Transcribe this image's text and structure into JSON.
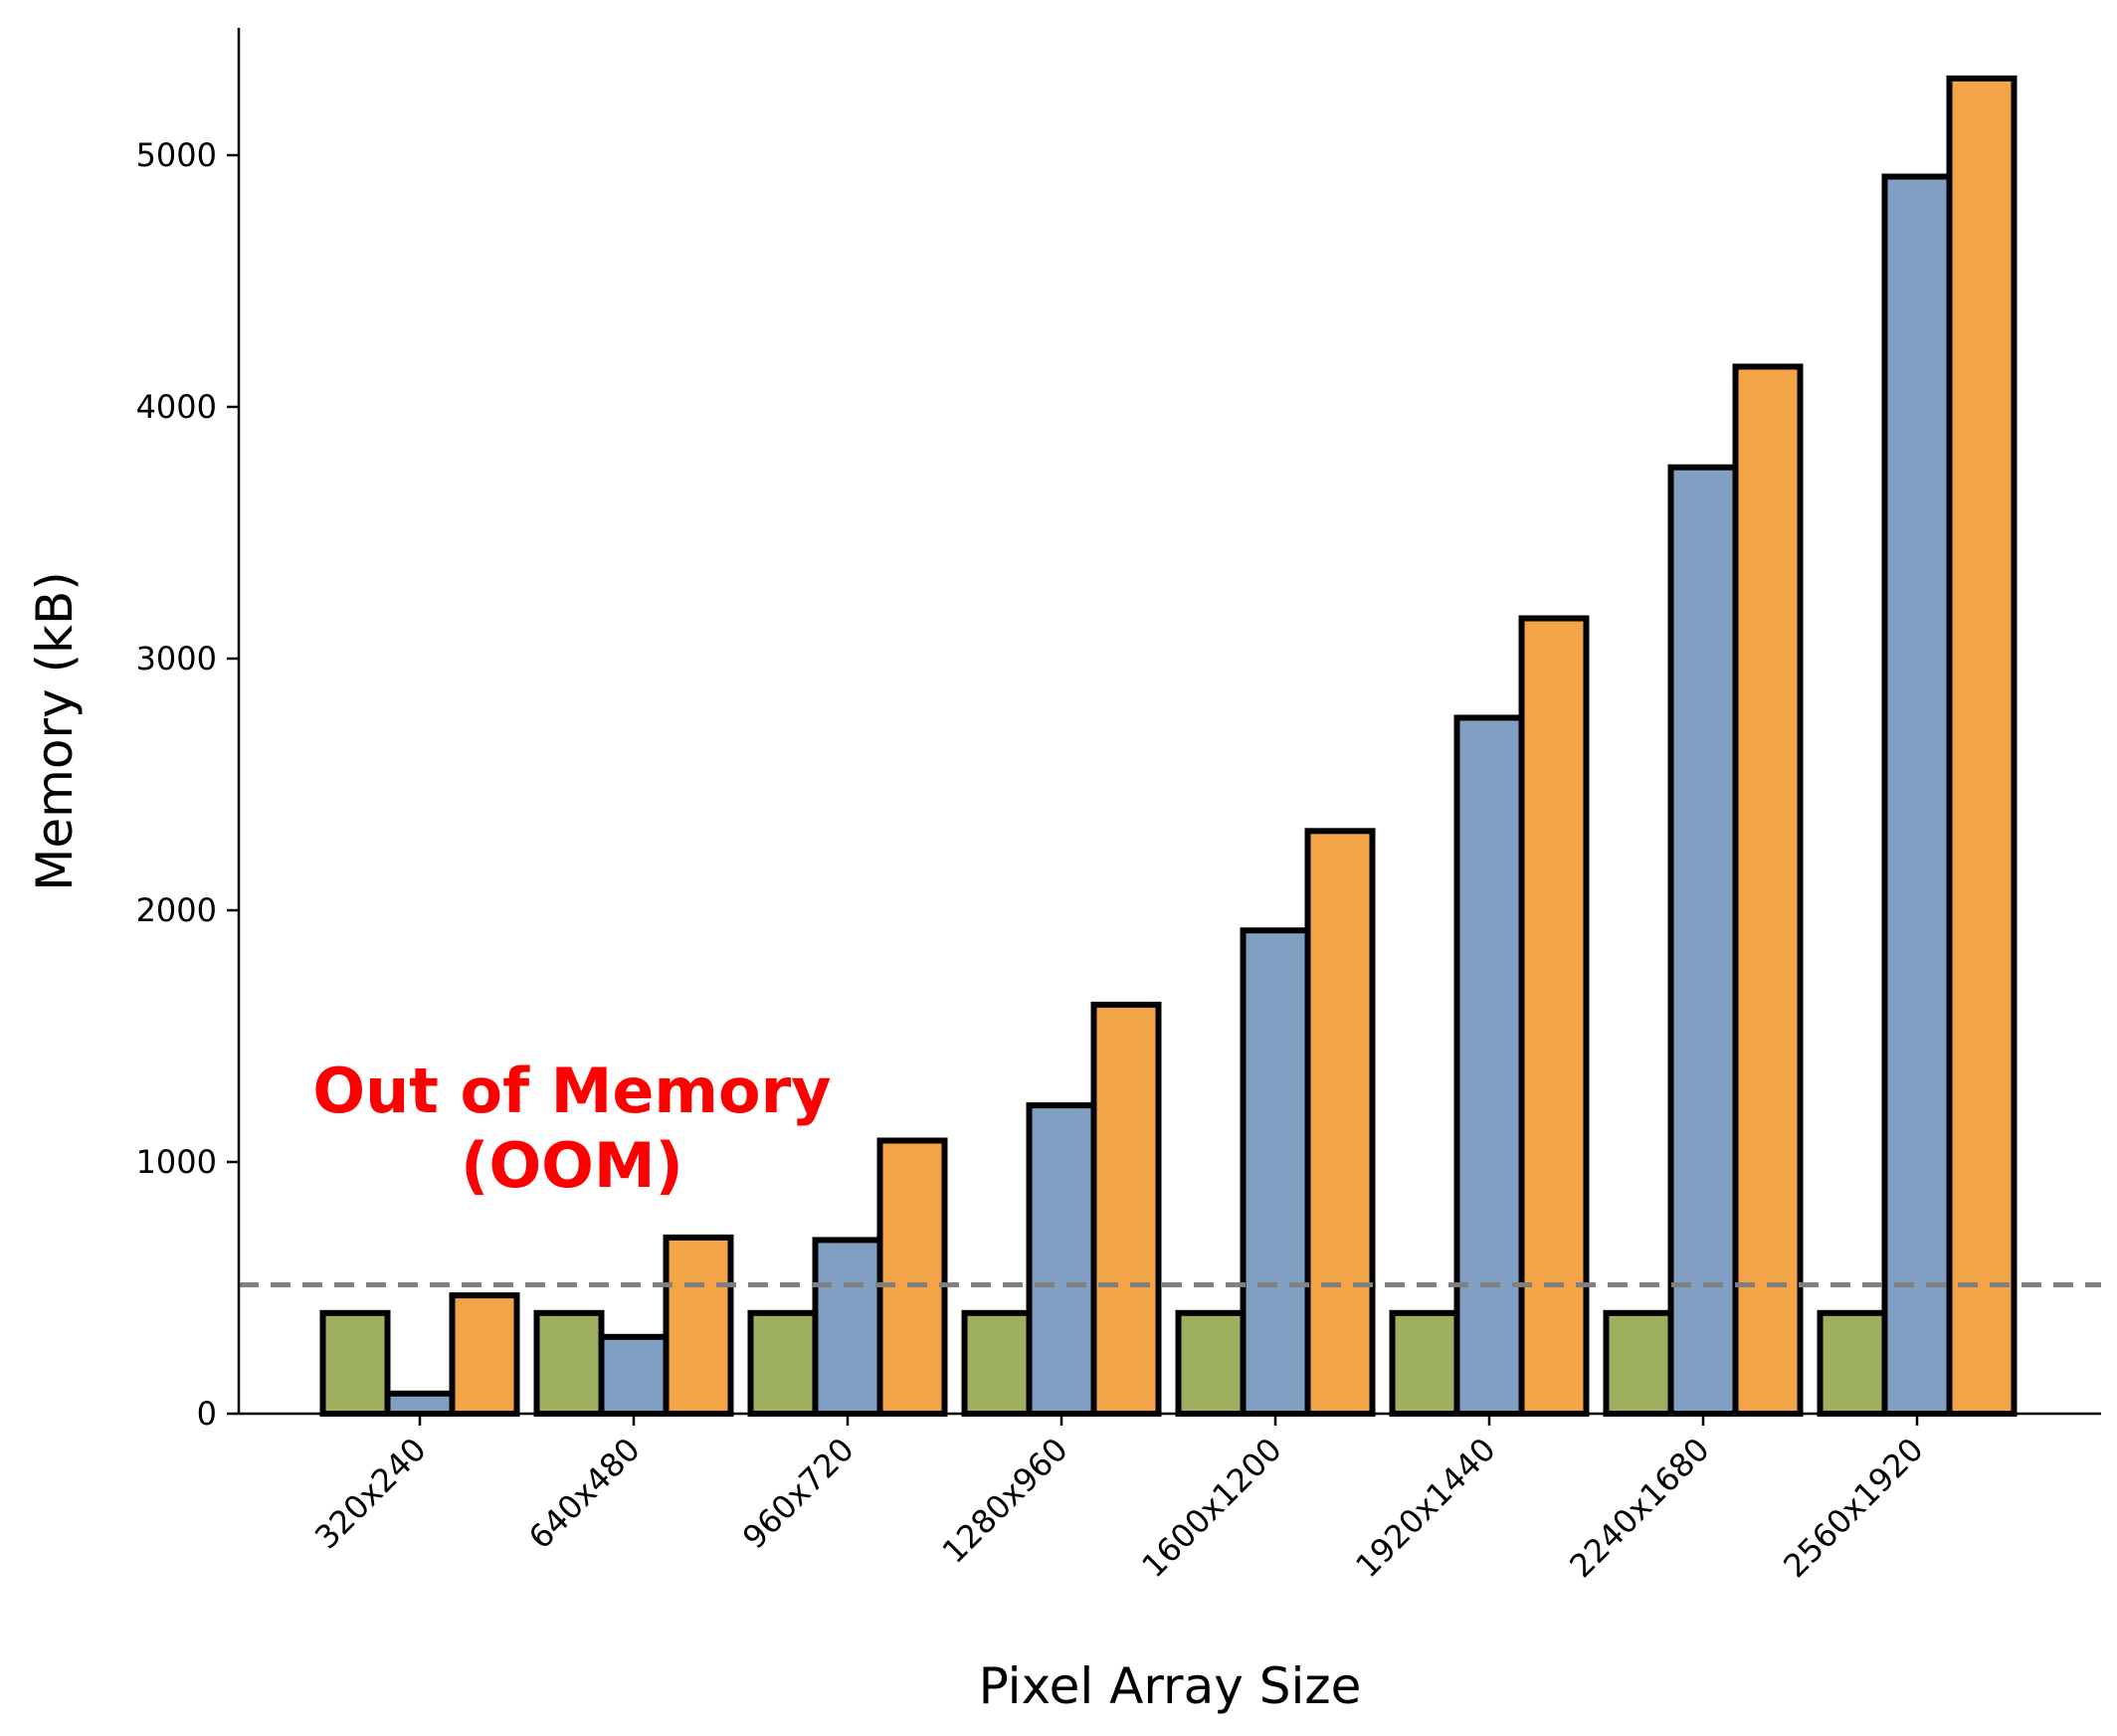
{
  "chart_data": {
    "type": "bar",
    "title": "",
    "xlabel": "Pixel Array Size",
    "ylabel": "Memory (kB)",
    "categories": [
      "320x240",
      "640x480",
      "960x720",
      "1280x960",
      "1600x1200",
      "1920x1440",
      "2240x1680",
      "2560x1920"
    ],
    "series": [
      {
        "color": "#9eb060",
        "values": [
          400,
          400,
          400,
          400,
          400,
          400,
          400,
          400
        ]
      },
      {
        "color": "#809fc2",
        "values": [
          80,
          305,
          690,
          1225,
          1920,
          2765,
          3760,
          4915
        ]
      },
      {
        "color": "#f2a446",
        "values": [
          470,
          700,
          1085,
          1625,
          2315,
          3160,
          4160,
          5305
        ]
      }
    ],
    "ylim": [
      0,
      5500
    ],
    "yticks": [
      0,
      1000,
      2000,
      3000,
      4000,
      5000
    ],
    "reference_line": {
      "value": 512,
      "color": "#808080",
      "style": "dashed"
    },
    "annotation": {
      "line1": "Out of Memory",
      "line2": "(OOM)",
      "color": "#ff0000"
    },
    "grid": false,
    "bar_edge_color": "#000000"
  }
}
